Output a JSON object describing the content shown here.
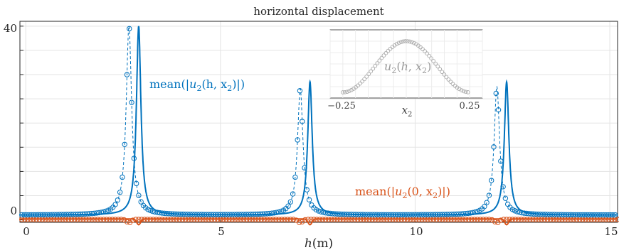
{
  "chart_data": [
    {
      "type": "line",
      "title": "horizontal displacement",
      "xlabel": "h(m)",
      "ylabel": "",
      "xlim": [
        -0.15,
        15.2
      ],
      "ylim": [
        -0.5,
        41
      ],
      "xticks": [
        0,
        5,
        10,
        15
      ],
      "yticks_labeled": [
        0,
        40
      ],
      "yticks_minor": [
        5,
        10,
        15,
        20,
        25,
        30,
        35
      ],
      "grid": true,
      "series": [
        {
          "name": "mean(|u2(h,x2)|)",
          "style": "solid",
          "color": "#0072BD",
          "peaks": [
            [
              2.9,
              40.0
            ],
            [
              7.3,
              28.5
            ],
            [
              12.35,
              28.5
            ]
          ],
          "baseline": 1.0
        },
        {
          "name": "",
          "style": "dashed-circles",
          "color": "#0072BD",
          "peaks": [
            [
              2.65,
              40.0
            ],
            [
              7.05,
              27.0
            ],
            [
              12.1,
              27.5
            ]
          ],
          "baseline": 1.0
        },
        {
          "name": "mean(|u2(0,x2)|)",
          "style": "solid",
          "color": "#D95319",
          "baseline": 0.2,
          "dips": [
            [
              2.9,
              -1.0
            ],
            [
              7.3,
              -1.0
            ],
            [
              12.35,
              -1.0
            ]
          ]
        },
        {
          "name": "",
          "style": "dashed-circles",
          "color": "#D95319",
          "baseline": 0.1,
          "dips": [
            [
              2.65,
              -0.6
            ],
            [
              7.05,
              -0.6
            ],
            [
              12.1,
              -0.6
            ]
          ]
        }
      ],
      "annotations": [
        {
          "text_prefix": "mean(|",
          "var": "u",
          "sub": "2",
          "args": "(h, x",
          "args_sub": "2",
          "suffix": ")|)",
          "color": "#0072BD"
        },
        {
          "text_prefix": "mean(|",
          "var": "u",
          "sub": "2",
          "args": "(0, x",
          "args_sub": "2",
          "suffix": ")|)",
          "color": "#D95319"
        }
      ]
    },
    {
      "type": "scatter",
      "inset": true,
      "label": "u2(h,x2)",
      "xlabel": "x2",
      "xlim": [
        -0.3,
        0.3
      ],
      "xticks": [
        -0.25,
        0.25
      ],
      "shape": "cosine",
      "color": "#aaaaaa"
    }
  ],
  "text": {
    "title": "horizontal displacement",
    "xtick_0": "0",
    "xtick_5": "5",
    "xtick_10": "10",
    "xtick_15": "15",
    "ytick_0": "0",
    "ytick_40": "40",
    "xlabel_var": "h",
    "xlabel_unit": "(m)",
    "inset_xtick_neg": "−0.25",
    "inset_xtick_pos": "0.25",
    "inset_xlabel_var": "x",
    "inset_xlabel_sub": "2"
  }
}
